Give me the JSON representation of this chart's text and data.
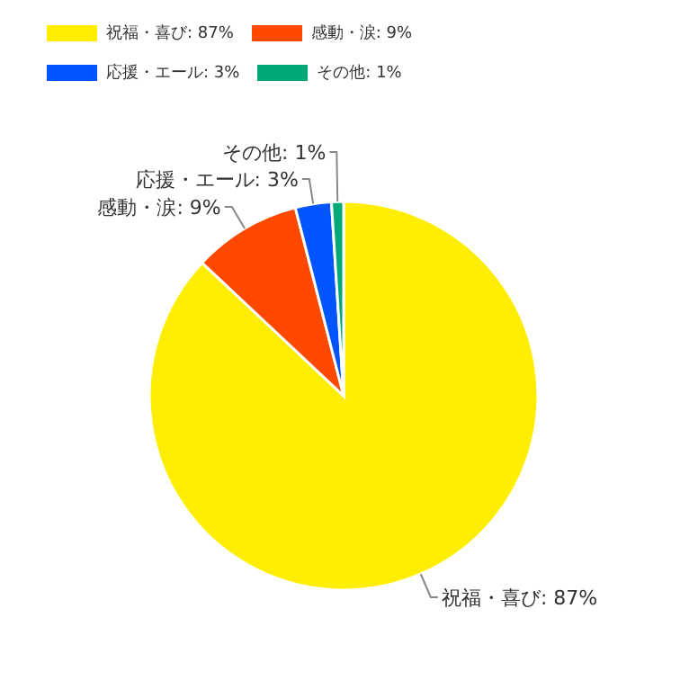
{
  "chart_data": {
    "type": "pie",
    "categories": [
      "祝福・喜び: 87%",
      "感動・涙: 9%",
      "応援・エール: 3%",
      "その他: 1%"
    ],
    "values": [
      87,
      9,
      3,
      1
    ],
    "colors": [
      "#ffee00",
      "#ff4800",
      "#0055ff",
      "#00a878"
    ],
    "legend": "top"
  }
}
